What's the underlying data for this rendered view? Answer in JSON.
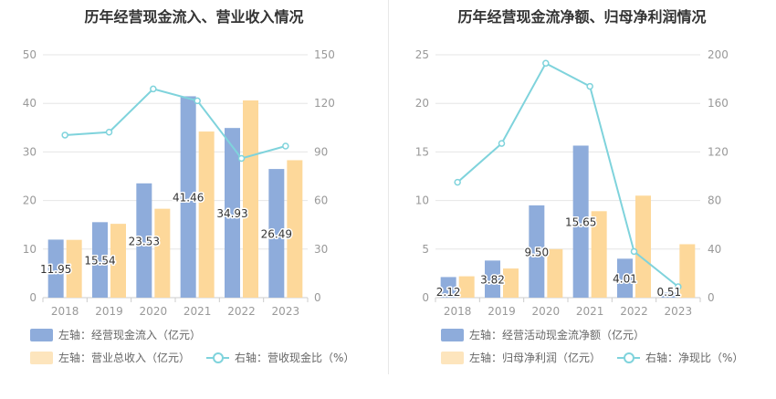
{
  "colors": {
    "bar1": "#8eacdb",
    "bar2": "#fdd89a",
    "line": "#7fd3dc",
    "grid": "#e6e6e6",
    "axis_text": "#999999"
  },
  "chart_data": [
    {
      "type": "bar",
      "title": "历年经营现金流入、营业收入情况",
      "categories": [
        "2018",
        "2019",
        "2020",
        "2021",
        "2022",
        "2023"
      ],
      "y_left": {
        "range": [
          0,
          50
        ],
        "ticks": [
          "0",
          "10",
          "20",
          "30",
          "40",
          "50"
        ]
      },
      "y_right": {
        "range": [
          0,
          150
        ],
        "ticks": [
          "0",
          "30",
          "60",
          "90",
          "120",
          "150"
        ]
      },
      "series": [
        {
          "name": "左轴：经营现金流入（亿元）",
          "axis": "left",
          "kind": "bar",
          "values": [
            11.95,
            15.54,
            23.53,
            41.46,
            34.93,
            26.49
          ],
          "labels": [
            "11.95",
            "15.54",
            "23.53",
            "41.46",
            "34.93",
            "26.49"
          ]
        },
        {
          "name": "左轴：营业总收入（亿元）",
          "axis": "left",
          "kind": "bar",
          "values": [
            11.9,
            15.2,
            18.3,
            34.2,
            40.6,
            28.3
          ]
        },
        {
          "name": "右轴：营收现金比（%）",
          "axis": "right",
          "kind": "line",
          "values": [
            100.4,
            102.2,
            128.9,
            121.6,
            86.0,
            93.6
          ]
        }
      ]
    },
    {
      "type": "bar",
      "title": "历年经营现金流净额、归母净利润情况",
      "categories": [
        "2018",
        "2019",
        "2020",
        "2021",
        "2022",
        "2023"
      ],
      "y_left": {
        "range": [
          0,
          25
        ],
        "ticks": [
          "0",
          "5",
          "10",
          "15",
          "20",
          "25"
        ]
      },
      "y_right": {
        "range": [
          0,
          200
        ],
        "ticks": [
          "0",
          "40",
          "80",
          "120",
          "160",
          "200"
        ]
      },
      "series": [
        {
          "name": "左轴：经营活动现金流净额（亿元）",
          "axis": "left",
          "kind": "bar",
          "values": [
            2.12,
            3.82,
            9.5,
            15.65,
            4.01,
            0.51
          ],
          "labels": [
            "2.12",
            "3.82",
            "9.50",
            "15.65",
            "4.01",
            "0.51"
          ]
        },
        {
          "name": "左轴：归母净利润（亿元）",
          "axis": "left",
          "kind": "bar",
          "values": [
            2.2,
            3.0,
            5.0,
            8.9,
            10.5,
            5.5
          ]
        },
        {
          "name": "右轴：净现比（%）",
          "axis": "right",
          "kind": "line",
          "values": [
            95,
            127,
            193,
            174,
            38,
            9
          ]
        }
      ]
    }
  ]
}
